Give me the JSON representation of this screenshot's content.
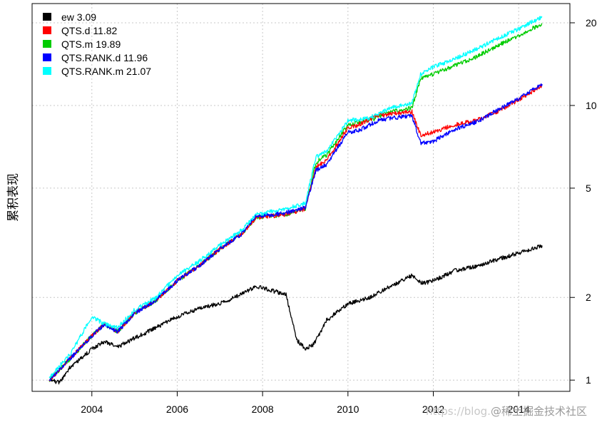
{
  "chart_data": {
    "type": "line",
    "ylabel": "累积表现",
    "y_scale": "log",
    "ylim": [
      0.91,
      23.5
    ],
    "xlim": [
      2002.6,
      2015.2
    ],
    "x_ticks": [
      2004,
      2006,
      2008,
      2010,
      2012,
      2014
    ],
    "y_ticks": [
      1,
      2,
      5,
      10,
      20
    ],
    "grid": true,
    "legend_position": "top-left",
    "series": [
      {
        "name": "ew",
        "legend_label": "ew 3.09",
        "color": "#000000",
        "x": [
          2003.0,
          2003.25,
          2003.5,
          2003.75,
          2004.0,
          2004.3,
          2004.6,
          2005.0,
          2005.5,
          2006.0,
          2006.5,
          2007.0,
          2007.5,
          2007.85,
          2008.2,
          2008.55,
          2008.8,
          2009.0,
          2009.2,
          2009.5,
          2010.0,
          2010.5,
          2011.0,
          2011.5,
          2011.75,
          2012.0,
          2012.5,
          2013.0,
          2013.5,
          2014.0,
          2014.55
        ],
        "y": [
          1.0,
          0.98,
          1.12,
          1.2,
          1.3,
          1.38,
          1.32,
          1.42,
          1.55,
          1.7,
          1.82,
          1.9,
          2.05,
          2.2,
          2.12,
          2.05,
          1.4,
          1.3,
          1.35,
          1.65,
          1.9,
          2.0,
          2.2,
          2.4,
          2.25,
          2.3,
          2.5,
          2.6,
          2.75,
          2.9,
          3.09
        ]
      },
      {
        "name": "QTS.d",
        "legend_label": "QTS.d 11.82",
        "color": "#ff0000",
        "x": [
          2003.0,
          2003.5,
          2004.0,
          2004.3,
          2004.6,
          2005.0,
          2005.5,
          2006.0,
          2006.5,
          2007.0,
          2007.5,
          2007.85,
          2008.5,
          2009.0,
          2009.25,
          2009.5,
          2010.0,
          2010.25,
          2010.7,
          2011.0,
          2011.5,
          2011.7,
          2012.0,
          2012.5,
          2013.0,
          2013.5,
          2014.0,
          2014.55
        ],
        "y": [
          1.0,
          1.2,
          1.45,
          1.6,
          1.5,
          1.75,
          1.95,
          2.3,
          2.6,
          3.0,
          3.4,
          3.9,
          4.0,
          4.2,
          6.0,
          6.3,
          8.3,
          8.5,
          9.2,
          9.3,
          9.5,
          7.8,
          8.0,
          8.5,
          8.8,
          9.5,
          10.5,
          11.82
        ]
      },
      {
        "name": "QTS.m",
        "legend_label": "QTS.m 19.89",
        "color": "#00cc00",
        "x": [
          2003.0,
          2003.5,
          2004.0,
          2004.3,
          2004.6,
          2005.0,
          2005.5,
          2006.0,
          2006.5,
          2007.0,
          2007.5,
          2007.85,
          2008.5,
          2009.0,
          2009.25,
          2009.5,
          2010.0,
          2010.5,
          2011.0,
          2011.5,
          2011.7,
          2012.0,
          2012.5,
          2013.0,
          2013.5,
          2014.0,
          2014.55
        ],
        "y": [
          1.0,
          1.2,
          1.45,
          1.6,
          1.5,
          1.75,
          1.95,
          2.3,
          2.6,
          3.0,
          3.4,
          3.9,
          4.0,
          4.2,
          6.2,
          6.6,
          8.5,
          8.8,
          9.5,
          9.8,
          12.5,
          13.0,
          14.0,
          15.0,
          16.5,
          18.0,
          19.89
        ]
      },
      {
        "name": "QTS.RANK.d",
        "legend_label": "QTS.RANK.d 11.96",
        "color": "#0000ff",
        "x": [
          2003.0,
          2003.5,
          2004.0,
          2004.3,
          2004.6,
          2005.0,
          2005.5,
          2006.0,
          2006.5,
          2007.0,
          2007.5,
          2007.85,
          2008.5,
          2009.0,
          2009.25,
          2009.5,
          2010.0,
          2010.25,
          2010.7,
          2011.0,
          2011.5,
          2011.7,
          2012.0,
          2012.5,
          2013.0,
          2013.5,
          2014.0,
          2014.55
        ],
        "y": [
          1.0,
          1.2,
          1.45,
          1.6,
          1.5,
          1.75,
          1.95,
          2.3,
          2.6,
          3.0,
          3.4,
          3.95,
          4.05,
          4.25,
          5.8,
          6.1,
          8.0,
          8.1,
          8.8,
          9.0,
          9.2,
          7.3,
          7.4,
          8.2,
          8.7,
          9.6,
          10.6,
          11.96
        ]
      },
      {
        "name": "QTS.RANK.m",
        "legend_label": "QTS.RANK.m 21.07",
        "color": "#00ffff",
        "x": [
          2003.0,
          2003.5,
          2004.0,
          2004.3,
          2004.6,
          2005.0,
          2005.5,
          2006.0,
          2006.5,
          2007.0,
          2007.5,
          2007.85,
          2008.5,
          2009.0,
          2009.25,
          2009.5,
          2010.0,
          2010.5,
          2011.0,
          2011.5,
          2011.7,
          2012.0,
          2012.5,
          2013.0,
          2013.5,
          2014.0,
          2014.55
        ],
        "y": [
          1.02,
          1.25,
          1.7,
          1.6,
          1.55,
          1.8,
          2.0,
          2.4,
          2.7,
          3.1,
          3.5,
          4.0,
          4.2,
          4.4,
          6.5,
          6.8,
          8.8,
          9.0,
          9.8,
          10.2,
          13.0,
          13.8,
          14.8,
          16.0,
          17.5,
          19.0,
          21.07
        ]
      }
    ]
  },
  "watermark": {
    "prefix": "https://blog.",
    "text": "@稀土掘金技术社区"
  }
}
